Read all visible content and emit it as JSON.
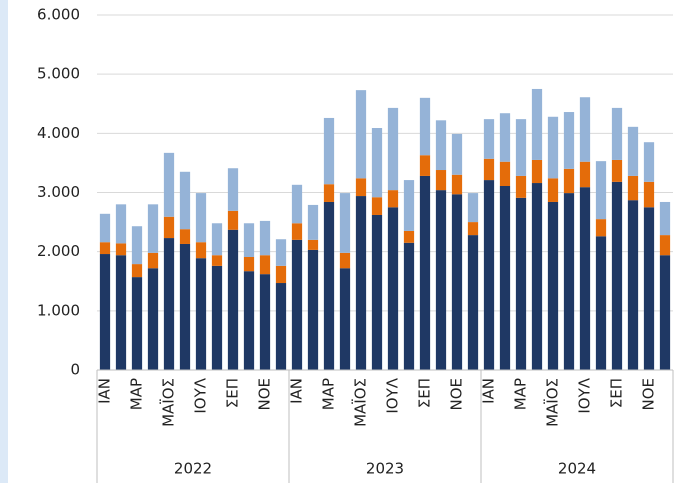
{
  "chart_data": {
    "type": "stacked_bar",
    "categories": [
      "ΙΑΝ",
      null,
      "ΜΑΡ",
      null,
      "ΜΑΪΟΣ",
      null,
      "ΙΟΥΛ",
      null,
      "ΣΕΠ",
      null,
      "ΝΟΕ",
      null,
      "ΙΑΝ",
      null,
      "ΜΑΡ",
      null,
      "ΜΑΪΟΣ",
      null,
      "ΙΟΥΛ",
      null,
      "ΣΕΠ",
      null,
      "ΝΟΕ",
      null,
      "ΙΑΝ",
      null,
      "ΜΑΡ",
      null,
      "ΜΑΪΟΣ",
      null,
      "ΙΟΥΛ",
      null,
      "ΣΕΠ",
      null,
      "ΝΟΕ",
      null
    ],
    "groups": [
      "2022",
      "2023",
      "2024"
    ],
    "series": [
      {
        "color": "#1f3864",
        "values": [
          1960,
          1940,
          1570,
          1720,
          2230,
          2130,
          1890,
          1760,
          2370,
          1670,
          1620,
          1470,
          2200,
          2030,
          2840,
          1720,
          2940,
          2620,
          2750,
          2150,
          3280,
          3040,
          2970,
          2280,
          3210,
          3110,
          2910,
          3160,
          2840,
          2990,
          3090,
          2260,
          3180,
          2870,
          2750,
          1940
        ]
      },
      {
        "color": "#e46c0a",
        "values": [
          200,
          200,
          220,
          260,
          360,
          250,
          270,
          180,
          320,
          240,
          320,
          290,
          280,
          170,
          300,
          260,
          300,
          300,
          290,
          200,
          350,
          340,
          330,
          220,
          360,
          410,
          370,
          390,
          400,
          410,
          430,
          290,
          370,
          410,
          430,
          340
        ]
      },
      {
        "color": "#95b3d7",
        "values": [
          480,
          660,
          640,
          820,
          1080,
          970,
          830,
          540,
          720,
          570,
          580,
          450,
          650,
          590,
          1120,
          1010,
          1490,
          1170,
          1390,
          860,
          970,
          840,
          690,
          490,
          670,
          820,
          960,
          1200,
          1040,
          960,
          1090,
          980,
          880,
          830,
          670,
          560
        ]
      }
    ],
    "ylim": [
      0,
      6000
    ],
    "yticks": [
      0,
      {
        "value": 1000,
        "label": "1.000"
      },
      {
        "value": 2000,
        "label": "2.000"
      },
      {
        "value": 3000,
        "label": "3.000"
      },
      {
        "value": 4000,
        "label": "4.000"
      },
      {
        "value": 5000,
        "label": "5.000"
      },
      {
        "value": 6000,
        "label": "6.000"
      }
    ],
    "grid": true
  }
}
